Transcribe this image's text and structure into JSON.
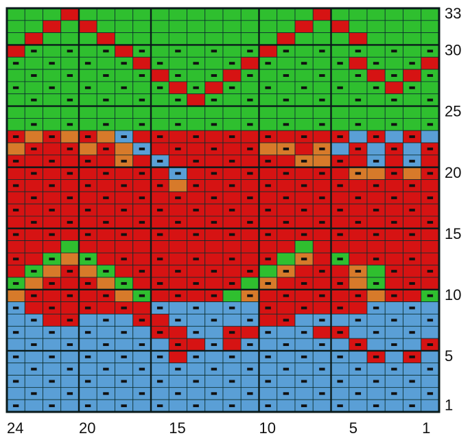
{
  "diagram": {
    "columns": 24,
    "rows": 33,
    "column_labels": [
      "24",
      "20",
      "15",
      "10",
      "5",
      "1"
    ],
    "row_labels": [
      "33",
      "30",
      "25",
      "20",
      "15",
      "10",
      "5",
      "1"
    ],
    "legend_note": "",
    "palette": {
      "G": "#2fbf2f",
      "R": "#d61313",
      "B": "#5a9fd6",
      "O": "#d77a2a",
      "grid": "#0b2e2e",
      "mark": "#111111"
    },
    "grid_rows_top_to_bottom": [
      "GGGRGGGGGGGGGGGGGRGGGGGG",
      "GGRGRGGGGGGGGGGGRGRGGGGG",
      "GRGGGRGGGGGGGGGRGGGRGGGG",
      "RGGGGGRGGGGGGGRGGGGGGGGG",
      "GGGGGGGRGGGGGRGGGGGRGGGR",
      "GGGGGGGGRGGGRGGGGGGGRGRG",
      "GGGGGGGGGRGRGGGGGGGGGRGG",
      "GGGGGGGGGGRGGGGGGGGGGGGG",
      "GGGGGGGGGGGGGGGGGGGGGGGG",
      "GGGGGGGGGGGGGGGGGGGGGGGG",
      "ROROROBRRRRRRRRRRRRBRBRB",
      "ORRROROBRRRRRROOROBRBRBR",
      "RRRRRRORBRRRRRRROORRBRBR",
      "RRRRRRRRRBRRRRRRRRROOROR",
      "RRRRRRRRRORRRRRRRRRRRRRR",
      "RRRRRRRRRRRRRRRRRRRRRRRR",
      "RRRRRRRRRRRRRRRRRRRRRRRR",
      "RRRRRRRRRRRRRRRRRRRRRRRR",
      "RRRRRRRRRRRRRRRRRRRRRRRR",
      "RRRGRRRRRRRRRRRRGRRRRRRR",
      "RRGOGRRRRRRRRRRGORGRRRRR",
      "RGOROGRRRRRRRRGORRROGRRR",
      "GORRROGRRRRRRGORRRROGRRR",
      "ORRRRROGRRRRGORRRRRRORRG",
      "BRRRRRRRBBBBBBRRRRRRBBBB",
      "BBRRBBBRRBBBBBRRBBBBBBBB",
      "BBBBBBBBRRBBRRBBBRRBBBBB",
      "BBBBBBBBBRRBRBBBBBBRBBBR",
      "BBBBBBBBBRBBBBBBBBBBRBRB",
      "BBBBBBBBBBBBBBBBBBBBBBBB",
      "BBBBBBBBBBBBBBBBBBBBBBBB",
      "BBBBBBBBBBBBBBBBBBBBBBBB",
      "BBBBBBBBBBBBBBBBBBBBBBBB"
    ],
    "marked_rows_1_based_from_top": [
      4,
      5,
      6,
      7,
      8,
      10,
      11,
      12,
      13,
      14,
      15,
      16,
      17,
      18,
      19,
      21,
      22,
      23,
      24,
      25,
      26,
      27,
      28,
      29,
      30,
      31,
      32,
      33
    ]
  }
}
